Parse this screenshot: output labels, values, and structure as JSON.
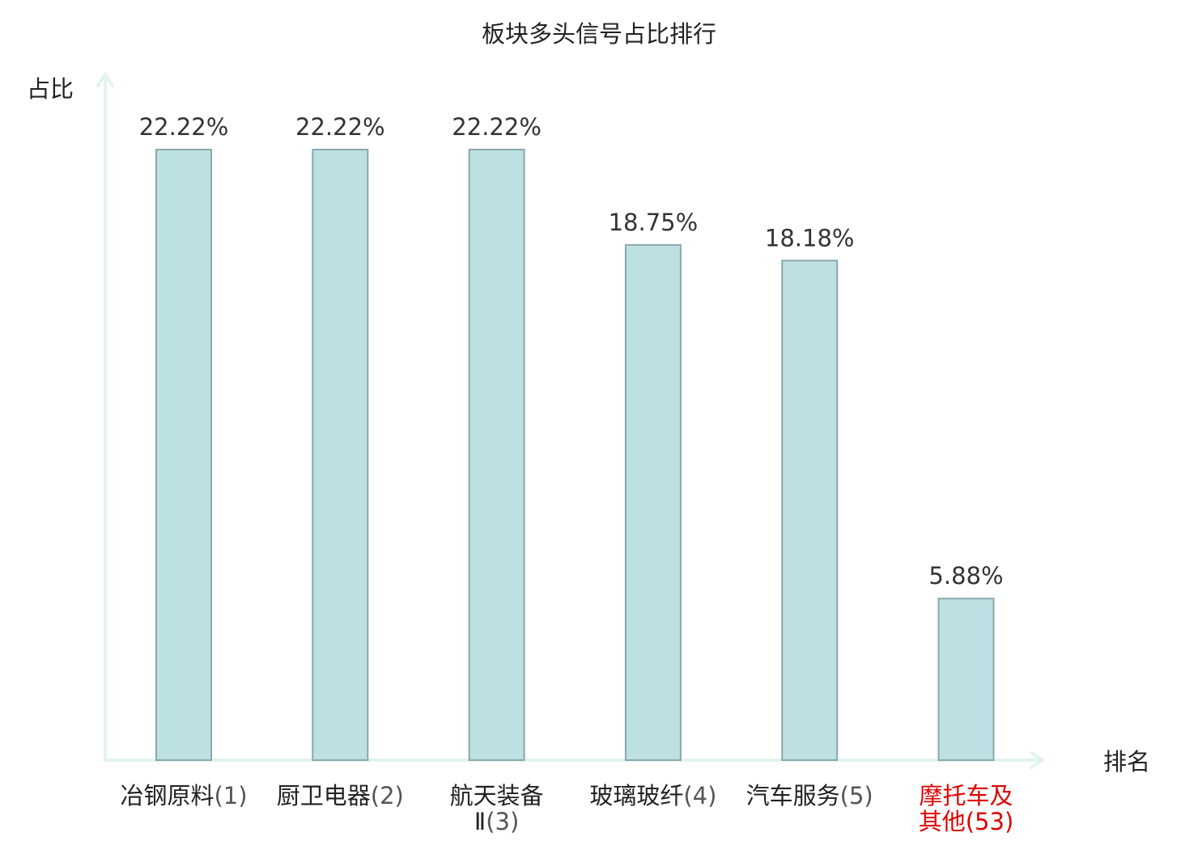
{
  "chart_data": {
    "type": "bar",
    "title": "板块多头信号占比排行",
    "xlabel": "排名",
    "ylabel": "占比",
    "ylim": [
      0,
      25
    ],
    "grid": false,
    "categories": [
      {
        "lines": [
          "冶钢原料"
        ],
        "rank": "(1)",
        "highlight": false
      },
      {
        "lines": [
          "厨卫电器"
        ],
        "rank": "(2)",
        "highlight": false
      },
      {
        "lines": [
          "航天装备",
          "Ⅱ"
        ],
        "rank": "(3)",
        "highlight": false
      },
      {
        "lines": [
          "玻璃玻纤"
        ],
        "rank": "(4)",
        "highlight": false
      },
      {
        "lines": [
          "汽车服务"
        ],
        "rank": "(5)",
        "highlight": false
      },
      {
        "lines": [
          "摩托车及",
          "其他"
        ],
        "rank": "(53)",
        "highlight": true
      }
    ],
    "values": [
      22.22,
      22.22,
      22.22,
      18.75,
      18.18,
      5.88
    ],
    "value_labels": [
      "22.22%",
      "22.22%",
      "22.22%",
      "18.75%",
      "18.18%",
      "5.88%"
    ],
    "colors": {
      "bar_fill": "#bde0e3",
      "bar_stroke": "#8aa9ab",
      "axis": "#e2f3f0",
      "highlight_text": "#e00000",
      "text": "#222222"
    }
  }
}
